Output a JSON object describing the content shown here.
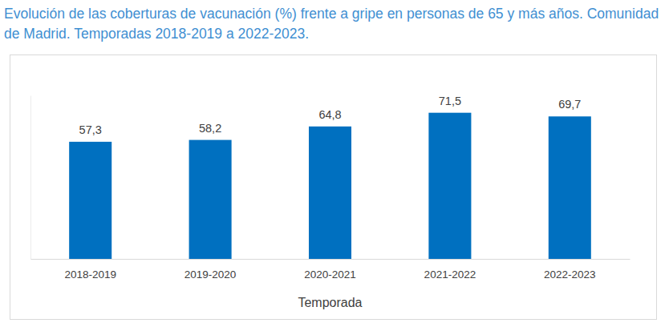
{
  "chart_data": {
    "type": "bar",
    "title": "Evolución de las coberturas de vacunación (%) frente a gripe en personas de 65 y más años. Comunidad de Madrid. Temporadas 2018-2019 a 2022-2023.",
    "x_label": "Temporada",
    "categories": [
      "2018-2019",
      "2019-2020",
      "2020-2021",
      "2021-2022",
      "2022-2023"
    ],
    "values": [
      57.3,
      58.2,
      64.8,
      71.5,
      69.7
    ],
    "value_labels": [
      "57,3",
      "58,2",
      "64,8",
      "71,5",
      "69,7"
    ],
    "color": "#0070c0",
    "ylim": [
      0,
      80
    ],
    "data_labels": true,
    "tick_labels": "x",
    "grid": false
  }
}
